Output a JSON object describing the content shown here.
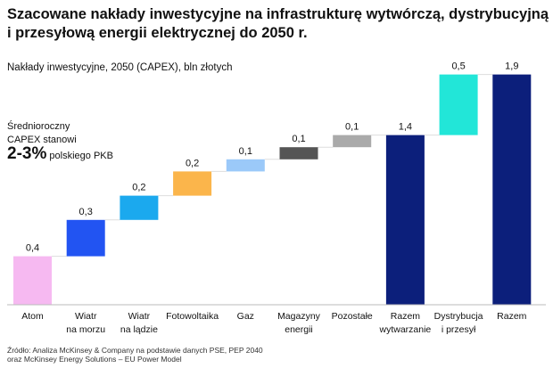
{
  "title_line1": "Szacowane nakłady inwestycyjne na infrastrukturę wytwórczą, dystrybucyjną",
  "title_line2": "i przesyłową energii elektrycznej do 2050 r.",
  "subtitle": "Nakłady inwestycyjne, 2050 (CAPEX), bln złotych",
  "note": {
    "line1": "Średnioroczny",
    "line2": "CAPEX stanowi",
    "highlight": "2-3%",
    "line3": "polskiego PKB"
  },
  "source": {
    "line1": "Źródło: Analiza McKinsey & Company na podstawie danych PSE, PEP 2040",
    "line2": "oraz McKinsey Energy Solutions – EU Power Model"
  },
  "chart_data": {
    "type": "waterfall",
    "categories": [
      [
        "Atom"
      ],
      [
        "Wiatr",
        "na morzu"
      ],
      [
        "Wiatr",
        "na lądzie"
      ],
      [
        "Fotowoltaika"
      ],
      [
        "Gaz"
      ],
      [
        "Magazyny",
        "energii"
      ],
      [
        "Pozostałe"
      ],
      [
        "Razem",
        "wytwarzanie"
      ],
      [
        "Dystrybucja",
        "i przesył"
      ],
      [
        "Razem"
      ]
    ],
    "values": [
      0.4,
      0.3,
      0.2,
      0.2,
      0.1,
      0.1,
      0.1,
      1.4,
      0.5,
      1.9
    ],
    "labels": [
      "0,4",
      "0,3",
      "0,2",
      "0,2",
      "0,1",
      "0,1",
      "0,1",
      "1,4",
      "0,5",
      "1,9"
    ],
    "bar_kind": [
      "step",
      "step",
      "step",
      "step",
      "step",
      "step",
      "step",
      "total",
      "step",
      "total"
    ],
    "colors": [
      "#f6b9f1",
      "#2254f2",
      "#1ba9ee",
      "#fbb54b",
      "#9bc9f9",
      "#555555",
      "#aaaaaa",
      "#0c1f7b",
      "#22e6d8",
      "#0c1f7b"
    ],
    "ylim": [
      0,
      2.0
    ],
    "grid": false
  }
}
